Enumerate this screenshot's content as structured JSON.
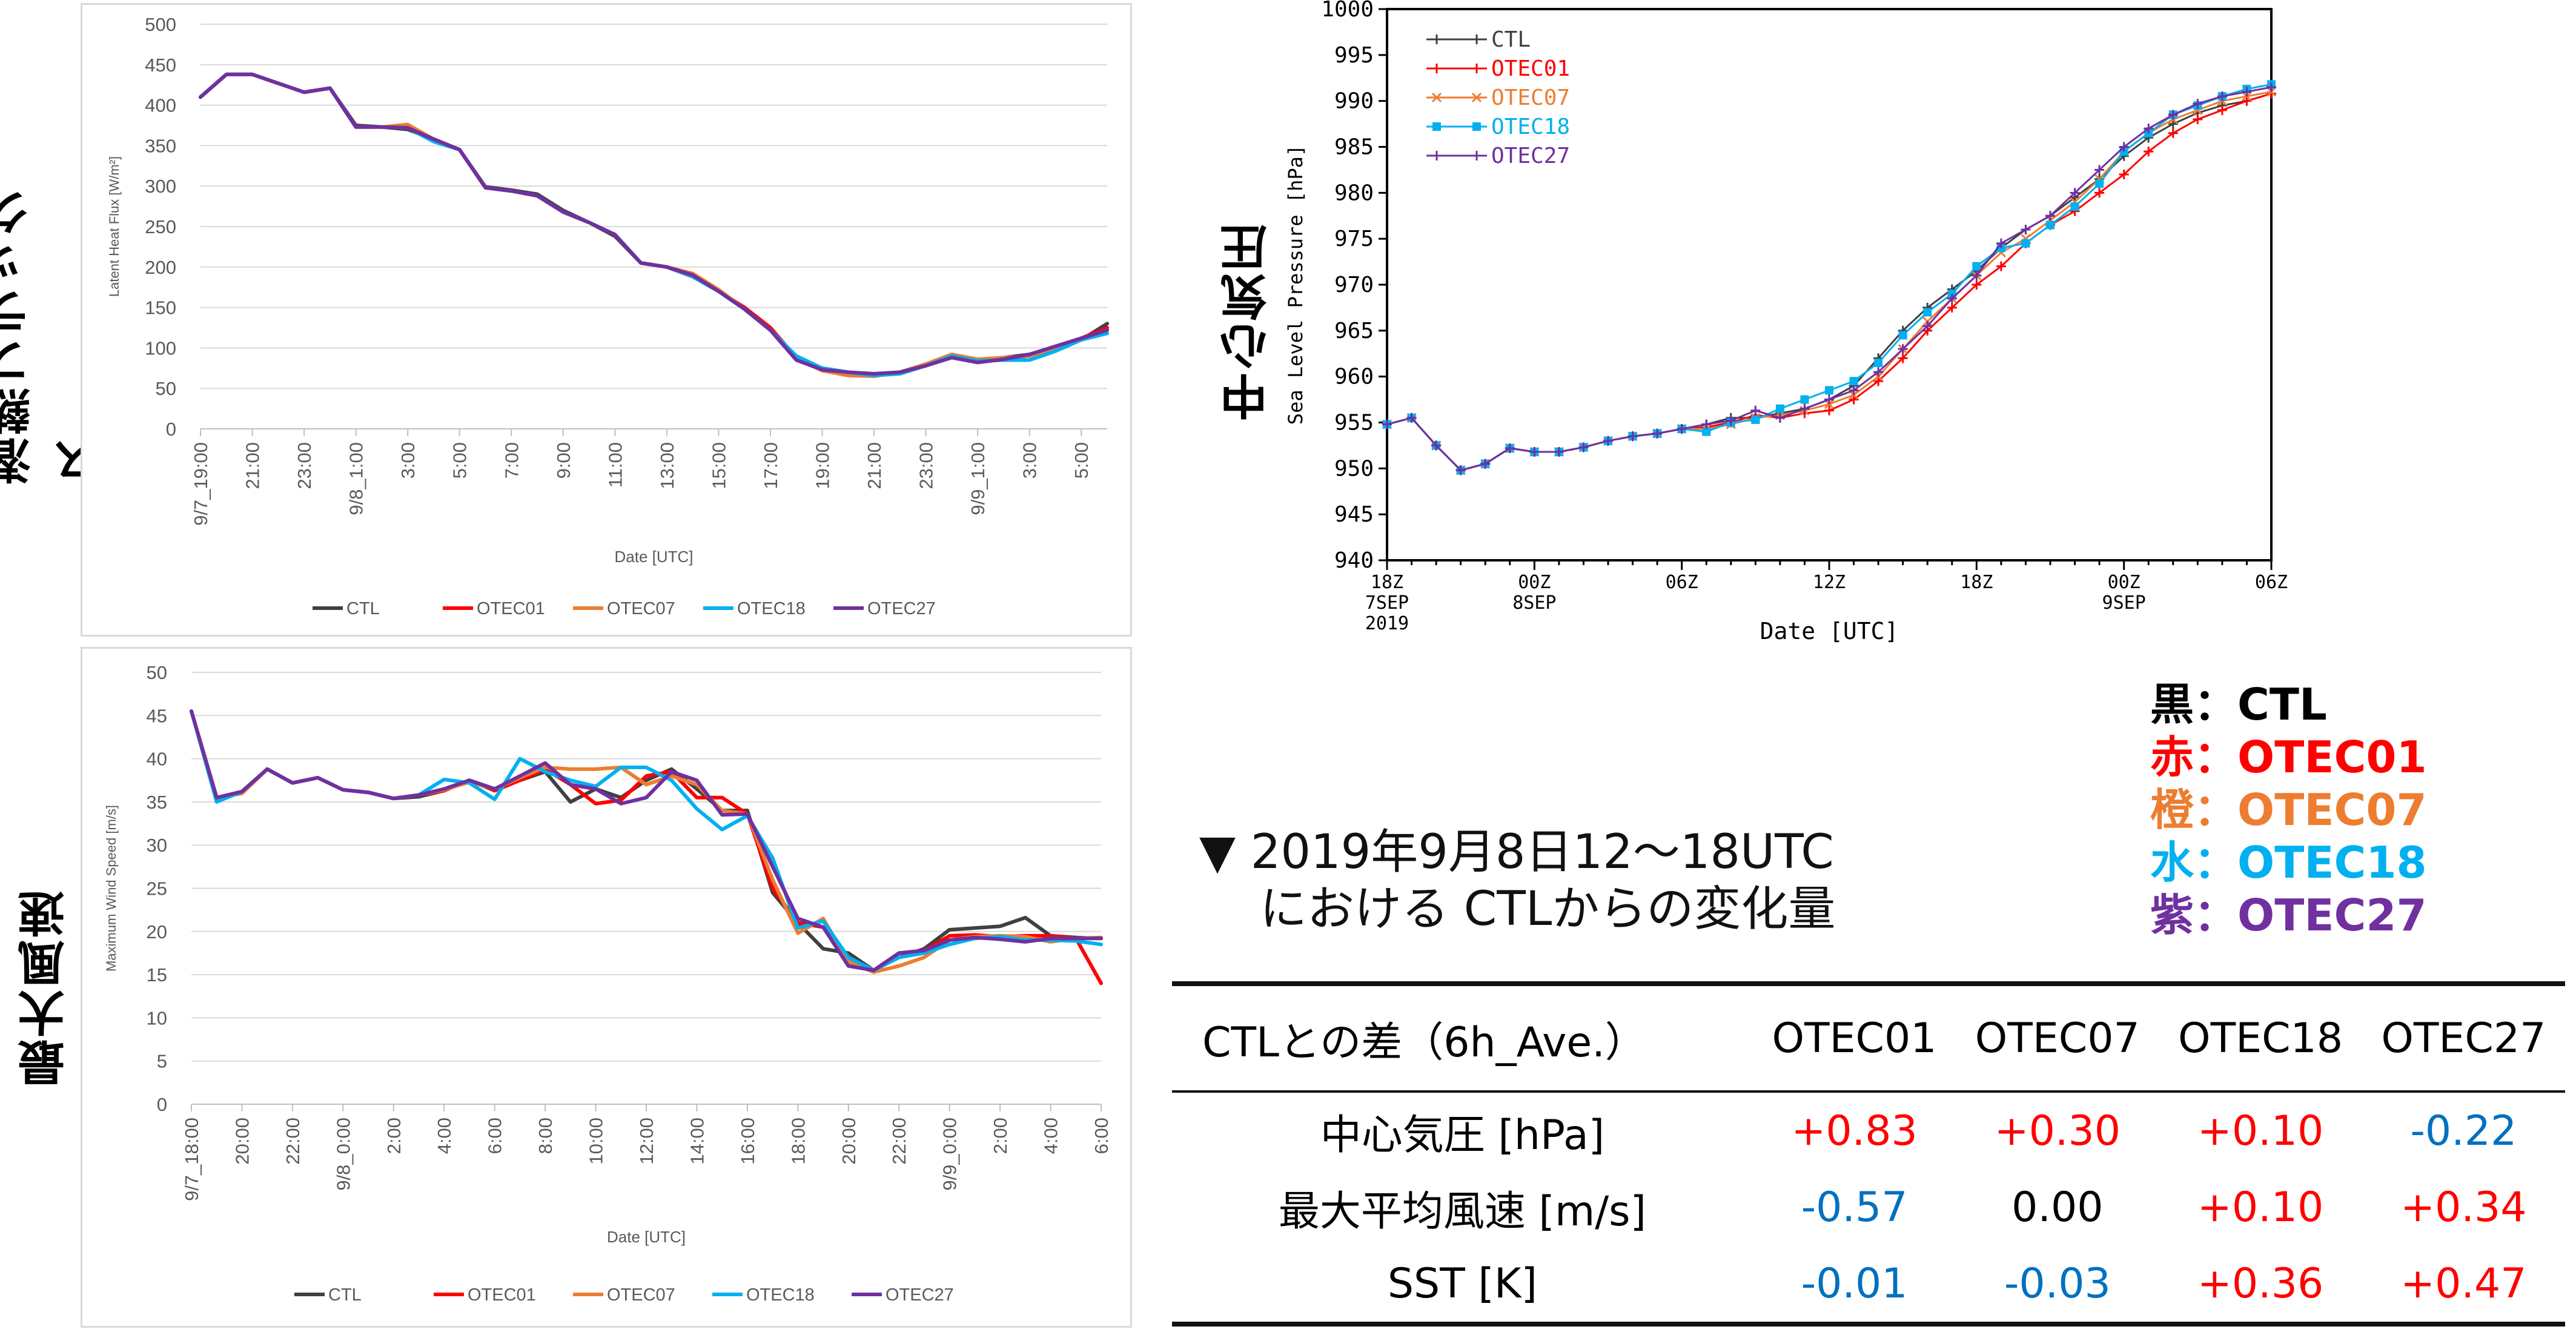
{
  "colors": {
    "CTL": "#404040",
    "OTEC01": "#ff0000",
    "OTEC07": "#ed7d31",
    "OTEC18": "#00b0f0",
    "OTEC27": "#7030a0",
    "pos": "#ff0000",
    "neg": "#0070c0",
    "zero": "#000000"
  },
  "labels": {
    "latent": "潜熱フラックス",
    "wind": "最大風速",
    "pressure": "中心気圧"
  },
  "legend_key": [
    {
      "mark": "黒",
      "sep": "：",
      "name": "CTL",
      "color": "#000000"
    },
    {
      "mark": "赤",
      "sep": "：",
      "name": "OTEC01",
      "color": "#ff0000"
    },
    {
      "mark": "橙",
      "sep": "：",
      "name": "OTEC07",
      "color": "#ed7d31"
    },
    {
      "mark": "水",
      "sep": "：",
      "name": "OTEC18",
      "color": "#00b0f0"
    },
    {
      "mark": "紫",
      "sep": "：",
      "name": "OTEC27",
      "color": "#7030a0"
    }
  ],
  "note": {
    "line1": "▼ 2019年9月8日12～18UTC",
    "line2": "における CTLからの変化量"
  },
  "table": {
    "headers": [
      "CTLとの差（6h_Ave.）",
      "OTEC01",
      "OTEC07",
      "OTEC18",
      "OTEC27"
    ],
    "rows": [
      {
        "label": "中心気圧 [hPa]",
        "values": [
          "+0.83",
          "+0.30",
          "+0.10",
          "-0.22"
        ]
      },
      {
        "label": "最大平均風速 [m/s]",
        "values": [
          "-0.57",
          "0.00",
          "+0.10",
          "+0.34"
        ]
      },
      {
        "label": "SST [K]",
        "values": [
          "-0.01",
          "-0.03",
          "+0.36",
          "+0.47"
        ]
      }
    ]
  },
  "chart_data": [
    {
      "type": "line",
      "xlabel": "Date [UTC]",
      "ylabel": "Latent Heat Flux [W/m²]",
      "ylim": [
        0,
        500
      ],
      "yticks": [
        0,
        50,
        100,
        150,
        200,
        250,
        300,
        350,
        400,
        450,
        500
      ],
      "grid": "horizontal",
      "legend": "bottom",
      "xticklabels": [
        "9/7_19:00",
        "21:00",
        "23:00",
        "9/8_1:00",
        "3:00",
        "5:00",
        "7:00",
        "9:00",
        "11:00",
        "13:00",
        "15:00",
        "17:00",
        "19:00",
        "21:00",
        "23:00",
        "9/9_1:00",
        "3:00",
        "5:00"
      ],
      "x_hours": [
        0,
        1,
        2,
        3,
        4,
        5,
        6,
        7,
        8,
        9,
        10,
        11,
        12,
        13,
        14,
        15,
        16,
        17,
        18,
        19,
        20,
        21,
        22,
        23,
        24,
        25,
        26,
        27,
        28,
        29,
        30,
        31,
        32,
        33,
        34,
        35
      ],
      "series": [
        {
          "name": "CTL",
          "values": [
            410,
            438,
            438,
            427,
            416,
            421,
            375,
            373,
            370,
            358,
            345,
            299,
            295,
            290,
            270,
            255,
            238,
            205,
            200,
            190,
            170,
            148,
            122,
            88,
            75,
            70,
            68,
            70,
            80,
            90,
            85,
            88,
            92,
            100,
            110,
            130
          ]
        },
        {
          "name": "OTEC01",
          "values": [
            410,
            438,
            438,
            427,
            416,
            421,
            373,
            373,
            372,
            358,
            345,
            298,
            294,
            288,
            268,
            255,
            240,
            205,
            200,
            188,
            170,
            150,
            125,
            88,
            72,
            68,
            66,
            70,
            78,
            90,
            83,
            88,
            90,
            100,
            112,
            125
          ]
        },
        {
          "name": "OTEC07",
          "values": [
            410,
            438,
            438,
            427,
            416,
            421,
            373,
            373,
            376,
            358,
            345,
            298,
            294,
            288,
            268,
            255,
            240,
            205,
            200,
            192,
            172,
            148,
            122,
            88,
            72,
            66,
            65,
            70,
            80,
            92,
            86,
            88,
            90,
            100,
            112,
            122
          ]
        },
        {
          "name": "OTEC18",
          "values": [
            410,
            438,
            438,
            427,
            416,
            421,
            373,
            373,
            372,
            355,
            345,
            298,
            294,
            288,
            268,
            255,
            240,
            205,
            200,
            188,
            170,
            148,
            122,
            90,
            75,
            70,
            66,
            68,
            78,
            90,
            84,
            85,
            85,
            96,
            110,
            118
          ]
        },
        {
          "name": "OTEC27",
          "values": [
            410,
            438,
            438,
            427,
            416,
            421,
            373,
            373,
            372,
            358,
            345,
            298,
            294,
            288,
            268,
            255,
            240,
            205,
            200,
            190,
            170,
            148,
            122,
            85,
            73,
            70,
            68,
            70,
            78,
            88,
            82,
            86,
            92,
            102,
            112,
            122
          ]
        }
      ]
    },
    {
      "type": "line",
      "xlabel": "Date [UTC]",
      "ylabel": "Maximum Wind Speed [m/s]",
      "ylim": [
        0,
        50
      ],
      "yticks": [
        0,
        5,
        10,
        15,
        20,
        25,
        30,
        35,
        40,
        45,
        50
      ],
      "grid": "horizontal",
      "legend": "bottom",
      "xticklabels": [
        "9/7_18:00",
        "20:00",
        "22:00",
        "9/8_0:00",
        "2:00",
        "4:00",
        "6:00",
        "8:00",
        "10:00",
        "12:00",
        "14:00",
        "16:00",
        "18:00",
        "20:00",
        "22:00",
        "9/9_0:00",
        "2:00",
        "4:00",
        "6:00"
      ],
      "x_hours": [
        0,
        1,
        2,
        3,
        4,
        5,
        6,
        7,
        8,
        9,
        10,
        11,
        12,
        13,
        14,
        15,
        16,
        17,
        18,
        19,
        20,
        21,
        22,
        23,
        24,
        25,
        26,
        27,
        28,
        29,
        30,
        31,
        32,
        33,
        34,
        35,
        36
      ],
      "series": [
        {
          "name": "CTL",
          "values": [
            45.5,
            35.5,
            36,
            38.8,
            37.2,
            37.8,
            36.4,
            36.1,
            35.4,
            35.6,
            36.3,
            37.5,
            36.5,
            37.5,
            38.5,
            35,
            36.5,
            35.5,
            37.5,
            38.8,
            36.5,
            34,
            34,
            24.5,
            21,
            18,
            17.5,
            15.5,
            17,
            18,
            20.2,
            20.4,
            20.6,
            21.6,
            19.5,
            19.3,
            19.2
          ]
        },
        {
          "name": "OTEC01",
          "values": [
            45.5,
            35.5,
            36,
            38.8,
            37.2,
            37.8,
            36.4,
            36.1,
            35.4,
            35.8,
            36.3,
            37.5,
            36.3,
            37.5,
            38.8,
            37,
            34.8,
            35.2,
            38,
            38.5,
            35.5,
            35.5,
            33.6,
            25,
            21,
            20.5,
            16.5,
            15.5,
            17.5,
            17.8,
            19.5,
            19.6,
            19.4,
            19.5,
            19.5,
            19.2,
            14
          ]
        },
        {
          "name": "OTEC07",
          "values": [
            45.5,
            35.5,
            36,
            38.8,
            37.2,
            37.8,
            36.4,
            36.1,
            35.4,
            35.8,
            36.4,
            37.3,
            36.5,
            37.8,
            39,
            38.8,
            38.8,
            39,
            37,
            38,
            37,
            34,
            33.6,
            26,
            19.8,
            21.5,
            16.5,
            15.3,
            16,
            17,
            19,
            19.4,
            19.5,
            19.4,
            18.8,
            19.2,
            19.3
          ]
        },
        {
          "name": "OTEC18",
          "values": [
            45.5,
            35,
            36.2,
            38.8,
            37.2,
            37.8,
            36.4,
            36.1,
            35.4,
            35.8,
            37.6,
            37.2,
            35.3,
            40,
            38.5,
            37.5,
            36.8,
            39,
            39,
            37.5,
            34.2,
            31.8,
            33.4,
            28.5,
            20.4,
            21.2,
            17,
            15.5,
            17,
            17.5,
            18.5,
            19.2,
            19.4,
            19,
            19,
            18.9,
            18.5
          ]
        },
        {
          "name": "OTEC27",
          "values": [
            45.5,
            35.5,
            36.2,
            38.8,
            37.2,
            37.8,
            36.4,
            36.1,
            35.4,
            35.8,
            36.5,
            37.5,
            36.5,
            38,
            39.5,
            37,
            36.5,
            34.8,
            35.5,
            38.5,
            37.5,
            33.5,
            33.6,
            27.5,
            21.5,
            20.5,
            16,
            15.5,
            17.5,
            17.8,
            19,
            19.3,
            19.1,
            18.8,
            19.2,
            19.2,
            19.2
          ]
        }
      ]
    },
    {
      "type": "line",
      "xlabel": "Date [UTC]",
      "ylabel": "Sea Level Pressure [hPa]",
      "ylim": [
        940,
        1000
      ],
      "yticks": [
        940,
        945,
        950,
        955,
        960,
        965,
        970,
        975,
        980,
        985,
        990,
        995,
        1000
      ],
      "grid": "none",
      "legend": "top-left",
      "xlim_hours": [
        0,
        36
      ],
      "xticks": [
        {
          "h": 0,
          "lines": [
            "18Z",
            "7SEP",
            "2019"
          ]
        },
        {
          "h": 6,
          "lines": [
            "00Z",
            "8SEP"
          ]
        },
        {
          "h": 12,
          "lines": [
            "06Z"
          ]
        },
        {
          "h": 18,
          "lines": [
            "12Z"
          ]
        },
        {
          "h": 24,
          "lines": [
            "18Z"
          ]
        },
        {
          "h": 30,
          "lines": [
            "00Z",
            "9SEP"
          ]
        },
        {
          "h": 36,
          "lines": [
            "06Z"
          ]
        }
      ],
      "series": [
        {
          "name": "CTL",
          "x": [
            0,
            1,
            2,
            3,
            4,
            5,
            6,
            7,
            8,
            9,
            10,
            11,
            12,
            13,
            14,
            15,
            16,
            17,
            18,
            19,
            20,
            21,
            22,
            23,
            24,
            25,
            26,
            27,
            28,
            29,
            30,
            31,
            32,
            33,
            34,
            35,
            36
          ],
          "values": [
            954.8,
            955.5,
            952.5,
            949.8,
            950.5,
            952.2,
            951.8,
            951.8,
            952.3,
            953,
            953.5,
            953.8,
            954.3,
            954.8,
            955.5,
            955.5,
            956,
            956.5,
            957.5,
            959,
            962,
            965,
            967.5,
            969.5,
            971.5,
            974,
            976,
            977.5,
            979.5,
            981.5,
            984,
            986,
            987.5,
            988.7,
            989.5,
            990,
            990.8
          ]
        },
        {
          "name": "OTEC01",
          "x": [
            0,
            1,
            2,
            3,
            4,
            5,
            6,
            7,
            8,
            9,
            10,
            11,
            12,
            13,
            14,
            15,
            16,
            17,
            18,
            19,
            20,
            21,
            22,
            23,
            24,
            25,
            26,
            27,
            28,
            29,
            30,
            31,
            32,
            33,
            34,
            35,
            36
          ],
          "values": [
            954.8,
            955.5,
            952.5,
            949.8,
            950.5,
            952.2,
            951.8,
            951.8,
            952.3,
            953,
            953.5,
            953.8,
            954.3,
            954.5,
            955,
            955.8,
            955.5,
            956,
            956.3,
            957.5,
            959.5,
            962,
            965,
            967.5,
            970,
            972,
            974.5,
            976.5,
            978,
            980,
            982,
            984.5,
            986.5,
            988,
            989,
            990,
            990.8
          ]
        },
        {
          "name": "OTEC07",
          "x": [
            0,
            1,
            2,
            3,
            4,
            5,
            6,
            7,
            8,
            9,
            10,
            11,
            12,
            13,
            14,
            15,
            16,
            17,
            18,
            19,
            20,
            21,
            22,
            23,
            24,
            25,
            26,
            27,
            28,
            29,
            30,
            31,
            32,
            33,
            34,
            35,
            36
          ],
          "values": [
            954.8,
            955.5,
            952.5,
            949.8,
            950.5,
            952.2,
            951.8,
            951.8,
            952.3,
            953,
            953.5,
            953.8,
            954.3,
            954.3,
            954.8,
            955.5,
            955.8,
            956.3,
            957,
            958,
            960,
            963,
            966,
            968.5,
            971,
            973.5,
            975,
            977,
            979,
            981.5,
            984.5,
            986.5,
            988,
            989,
            990,
            990.5,
            991
          ]
        },
        {
          "name": "OTEC18",
          "x": [
            0,
            1,
            2,
            3,
            4,
            5,
            6,
            7,
            8,
            9,
            10,
            11,
            12,
            13,
            14,
            15,
            16,
            17,
            18,
            19,
            20,
            21,
            22,
            23,
            24,
            25,
            26,
            27,
            28,
            29,
            30,
            31,
            32,
            33,
            34,
            35,
            36
          ],
          "values": [
            954.8,
            955.5,
            952.5,
            949.8,
            950.5,
            952.2,
            951.8,
            951.8,
            952.3,
            953,
            953.5,
            953.8,
            954.3,
            954,
            955,
            955.3,
            956.5,
            957.5,
            958.5,
            959.5,
            961.5,
            964.5,
            967,
            969,
            972,
            974,
            974.5,
            976.5,
            978.5,
            981,
            984.5,
            986.5,
            988.5,
            989.5,
            990.5,
            991.3,
            991.8
          ]
        },
        {
          "name": "OTEC27",
          "x": [
            0,
            1,
            2,
            3,
            4,
            5,
            6,
            7,
            8,
            9,
            10,
            11,
            12,
            13,
            14,
            15,
            16,
            17,
            18,
            19,
            20,
            21,
            22,
            23,
            24,
            25,
            26,
            27,
            28,
            29,
            30,
            31,
            32,
            33,
            34,
            35,
            36
          ],
          "values": [
            954.8,
            955.5,
            952.5,
            949.8,
            950.5,
            952.2,
            951.8,
            951.8,
            952.3,
            953,
            953.5,
            953.8,
            954.3,
            954.8,
            955.2,
            956.3,
            955.5,
            956.5,
            957.5,
            958.5,
            960.5,
            963,
            965.5,
            968.5,
            971,
            974.5,
            976,
            977.5,
            980,
            982.5,
            985,
            987,
            988.5,
            989.7,
            990.5,
            991,
            991.5
          ]
        }
      ]
    }
  ]
}
